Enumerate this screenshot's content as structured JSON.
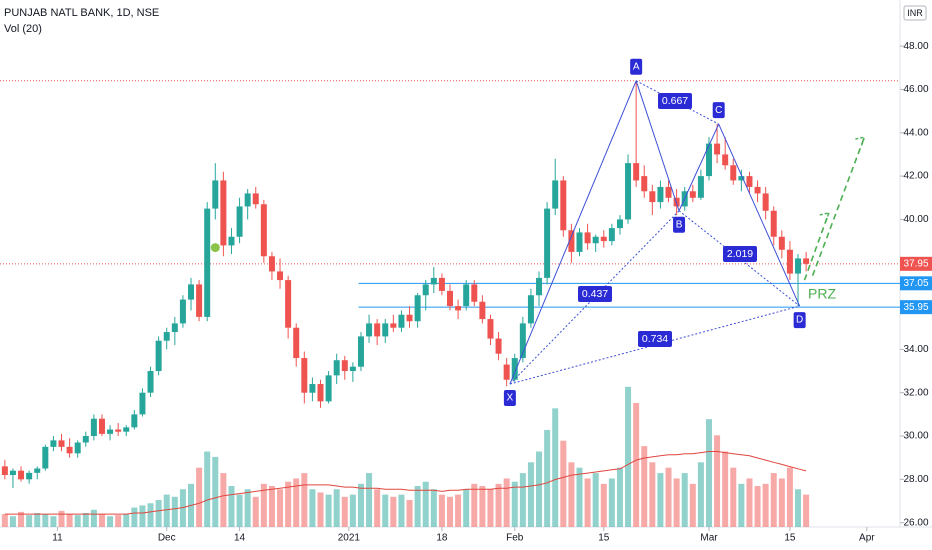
{
  "chart_data": {
    "type": "candlestick",
    "title": "PUNJAB NATL BANK, 1D, NSE",
    "subtitle": "Vol (20)",
    "currency": "INR",
    "colors": {
      "up": "#26a69a",
      "down": "#ef5350",
      "vol_ma": "#e0463f",
      "pattern": "#3d4fd6",
      "projection": "#4caf50"
    },
    "ylim": [
      25.8,
      48.9
    ],
    "yticks": [
      {
        "value": 26,
        "label": "26.00"
      },
      {
        "value": 28,
        "label": "28.00"
      },
      {
        "value": 30,
        "label": "30.00"
      },
      {
        "value": 32,
        "label": "32.00"
      },
      {
        "value": 34,
        "label": "34.00"
      },
      {
        "value": 36,
        "label": "36.00"
      },
      {
        "value": 38,
        "label": "38.00"
      },
      {
        "value": 40,
        "label": "40.00"
      },
      {
        "value": 42,
        "label": "42.00"
      },
      {
        "value": 44,
        "label": "44.00"
      },
      {
        "value": 46,
        "label": "46.00"
      },
      {
        "value": 48,
        "label": "48.00"
      }
    ],
    "xlim": [
      -0.6,
      110.6
    ],
    "xticks": [
      {
        "value": 6.5,
        "label": "11"
      },
      {
        "value": 20,
        "label": "Dec"
      },
      {
        "value": 29,
        "label": "14"
      },
      {
        "value": 42.5,
        "label": "2021"
      },
      {
        "value": 54,
        "label": "18"
      },
      {
        "value": 63,
        "label": "Feb"
      },
      {
        "value": 74,
        "label": "15"
      },
      {
        "value": 87,
        "label": "Mar"
      },
      {
        "value": 97,
        "label": "15"
      },
      {
        "value": 106.5,
        "label": "Apr"
      }
    ],
    "open": [
      28.6,
      28.2,
      28.4,
      28.0,
      28.3,
      28.5,
      29.5,
      29.8,
      29.5,
      29.2,
      29.7,
      30.0,
      30.8,
      30.1,
      30.3,
      30.2,
      30.4,
      31.0,
      32.0,
      33.0,
      34.4,
      34.8,
      35.2,
      36.3,
      37.0,
      35.5,
      40.5,
      41.8,
      38.8,
      39.2,
      40.6,
      41.2,
      40.7,
      38.3,
      37.6,
      37.2,
      35.0,
      33.6,
      32.0,
      32.4,
      31.6,
      32.8,
      33.5,
      33.0,
      33.2,
      34.6,
      35.2,
      34.6,
      35.2,
      35.0,
      35.6,
      35.3,
      36.5,
      37.0,
      37.3,
      36.7,
      36.0,
      36.0,
      37.0,
      36.2,
      35.4,
      34.5,
      33.3,
      32.6,
      33.6,
      35.2,
      36.5,
      37.3,
      40.5,
      41.8,
      39.5,
      38.5,
      39.4,
      38.9,
      39.2,
      39.0,
      39.6,
      40.0,
      42.6,
      42.0,
      41.3,
      40.8,
      41.5,
      41.0,
      40.6,
      41.3,
      41.0,
      42.0,
      43.5,
      43.0,
      42.5,
      41.8,
      42.0,
      41.5,
      41.2,
      40.4,
      39.2,
      38.6,
      37.5,
      38.2
    ],
    "high": [
      28.9,
      28.5,
      28.6,
      28.4,
      28.6,
      29.6,
      30.0,
      30.1,
      29.9,
      29.8,
      30.2,
      31.0,
      31.0,
      30.5,
      30.6,
      30.5,
      31.2,
      32.2,
      33.2,
      34.6,
      35.0,
      35.5,
      36.5,
      37.3,
      37.2,
      40.8,
      42.6,
      42.2,
      39.6,
      41.0,
      41.4,
      41.5,
      40.9,
      38.5,
      38.2,
      37.4,
      35.2,
      33.9,
      32.7,
      32.6,
      33.0,
      33.8,
      33.7,
      33.4,
      34.8,
      35.6,
      35.4,
      35.4,
      35.6,
      35.8,
      36.0,
      36.6,
      37.2,
      37.8,
      37.5,
      37.0,
      36.3,
      37.2,
      37.2,
      36.5,
      35.6,
      34.8,
      33.6,
      33.8,
      35.5,
      36.8,
      37.6,
      40.8,
      42.8,
      42.0,
      39.8,
      39.6,
      39.8,
      39.3,
      39.5,
      39.8,
      40.2,
      43.0,
      46.4,
      42.5,
      41.6,
      41.8,
      41.8,
      41.4,
      41.5,
      41.6,
      42.3,
      43.8,
      44.4,
      43.8,
      42.8,
      42.3,
      42.2,
      41.8,
      41.5,
      40.6,
      39.5,
      39.0,
      38.4,
      38.5
    ],
    "low": [
      28.0,
      27.6,
      27.9,
      27.8,
      28.0,
      28.4,
      29.3,
      29.3,
      29.0,
      29.0,
      29.5,
      29.8,
      30.0,
      29.8,
      30.0,
      30.0,
      30.3,
      30.9,
      31.8,
      32.8,
      34.0,
      34.2,
      35.0,
      35.8,
      35.3,
      35.3,
      40.0,
      38.3,
      38.4,
      38.9,
      40.0,
      40.5,
      38.0,
      37.2,
      36.8,
      34.5,
      33.2,
      31.5,
      31.6,
      31.3,
      31.5,
      32.4,
      32.6,
      32.5,
      33.0,
      34.3,
      34.2,
      34.3,
      34.8,
      34.8,
      35.0,
      35.0,
      35.8,
      36.6,
      36.5,
      35.8,
      35.4,
      35.8,
      36.0,
      35.2,
      34.2,
      33.5,
      32.3,
      32.5,
      33.4,
      35.0,
      36.0,
      37.0,
      40.2,
      39.2,
      38.0,
      38.3,
      38.6,
      38.5,
      38.7,
      38.8,
      39.3,
      39.8,
      41.5,
      41.0,
      40.2,
      40.5,
      40.8,
      40.2,
      40.4,
      40.8,
      40.9,
      41.8,
      42.6,
      42.3,
      41.6,
      41.3,
      41.2,
      40.8,
      40.0,
      38.8,
      38.2,
      37.2,
      36.0,
      37.6
    ],
    "close": [
      28.2,
      28.4,
      28.0,
      28.3,
      28.5,
      29.5,
      29.8,
      29.5,
      29.2,
      29.7,
      30.0,
      30.8,
      30.1,
      30.3,
      30.2,
      30.4,
      31.0,
      32.0,
      33.0,
      34.4,
      34.8,
      35.2,
      36.3,
      37.0,
      35.5,
      40.5,
      41.8,
      38.8,
      39.2,
      40.6,
      41.2,
      40.7,
      38.3,
      37.6,
      37.2,
      35.0,
      33.6,
      32.0,
      32.4,
      31.6,
      32.8,
      33.5,
      33.0,
      33.2,
      34.6,
      35.2,
      34.6,
      35.2,
      35.0,
      35.6,
      35.3,
      36.5,
      37.0,
      37.3,
      36.7,
      36.0,
      35.8,
      37.0,
      36.2,
      35.4,
      34.5,
      33.8,
      32.6,
      33.6,
      35.2,
      36.5,
      37.3,
      40.5,
      41.8,
      39.5,
      38.5,
      39.4,
      38.9,
      39.2,
      39.0,
      39.6,
      40.0,
      42.6,
      41.8,
      41.3,
      40.8,
      41.5,
      41.0,
      40.6,
      41.3,
      41.0,
      42.0,
      43.5,
      43.0,
      42.5,
      41.8,
      42.0,
      41.5,
      41.2,
      40.4,
      39.2,
      38.6,
      37.5,
      38.2,
      37.95
    ],
    "vlim": [
      0,
      140
    ],
    "volume": [
      12,
      10,
      14,
      11,
      13,
      12,
      10,
      15,
      12,
      11,
      13,
      16,
      12,
      10,
      11,
      12,
      18,
      20,
      22,
      25,
      30,
      28,
      35,
      40,
      55,
      70,
      65,
      50,
      38,
      30,
      35,
      28,
      40,
      38,
      35,
      42,
      45,
      50,
      35,
      32,
      30,
      35,
      28,
      30,
      40,
      50,
      35,
      30,
      28,
      30,
      25,
      38,
      42,
      35,
      30,
      28,
      30,
      35,
      40,
      38,
      35,
      40,
      45,
      42,
      50,
      60,
      70,
      90,
      110,
      80,
      60,
      55,
      45,
      50,
      40,
      45,
      55,
      130,
      115,
      75,
      60,
      50,
      55,
      45,
      50,
      40,
      60,
      100,
      85,
      70,
      55,
      40,
      45,
      38,
      40,
      50,
      45,
      55,
      35,
      30
    ],
    "vol_ma": [
      12,
      12,
      12,
      12,
      12,
      12,
      12,
      12,
      12,
      12,
      12,
      12,
      12,
      12,
      12,
      12,
      13,
      13,
      14,
      15,
      16,
      17,
      18,
      20,
      22,
      25,
      27,
      29,
      30,
      31,
      32,
      33,
      34,
      35,
      36,
      37,
      38,
      39,
      39,
      39,
      39,
      38,
      37,
      37,
      36,
      36,
      36,
      35,
      35,
      35,
      34,
      34,
      34,
      34,
      33,
      34,
      34,
      35,
      35,
      35,
      35,
      36,
      36,
      37,
      37,
      38,
      39,
      41,
      44,
      46,
      48,
      49,
      50,
      51,
      52,
      53,
      54,
      58,
      62,
      64,
      65,
      66,
      67,
      67,
      68,
      68,
      69,
      70,
      70,
      69,
      68,
      67,
      66,
      64,
      62,
      60,
      58,
      56,
      54,
      52
    ],
    "levels": [
      {
        "value": 46.4,
        "color": "#ef5350",
        "style": "dotted"
      },
      {
        "value": 37.95,
        "color": "#ef5350",
        "style": "dotted",
        "label": 37.95
      },
      {
        "value": 37.05,
        "color": "#2196f3",
        "style": "solid",
        "start": 43.7,
        "label": 37.05
      },
      {
        "value": 35.95,
        "color": "#2196f3",
        "style": "solid",
        "start": 43.7,
        "label": 35.95
      }
    ],
    "pattern": {
      "points": [
        {
          "label": "X",
          "x": 62.4,
          "y": 32.4
        },
        {
          "label": "A",
          "x": 78,
          "y": 46.4
        },
        {
          "label": "B",
          "x": 83.3,
          "y": 40.4
        },
        {
          "label": "C",
          "x": 88.2,
          "y": 44.4
        },
        {
          "label": "D",
          "x": 98.2,
          "y": 36.0
        }
      ],
      "ratios": [
        0.667,
        0.437,
        2.019,
        0.734
      ],
      "zone": "PRZ"
    },
    "marker": {
      "x": 26,
      "y": 38.7,
      "color": "#8bc34a"
    },
    "projection": [
      {
        "x": [
          98.8,
          101.8
        ],
        "y": [
          37.2,
          40.3
        ]
      },
      {
        "x": [
          99.8,
          106.2
        ],
        "y": [
          37.4,
          43.8
        ]
      }
    ]
  }
}
